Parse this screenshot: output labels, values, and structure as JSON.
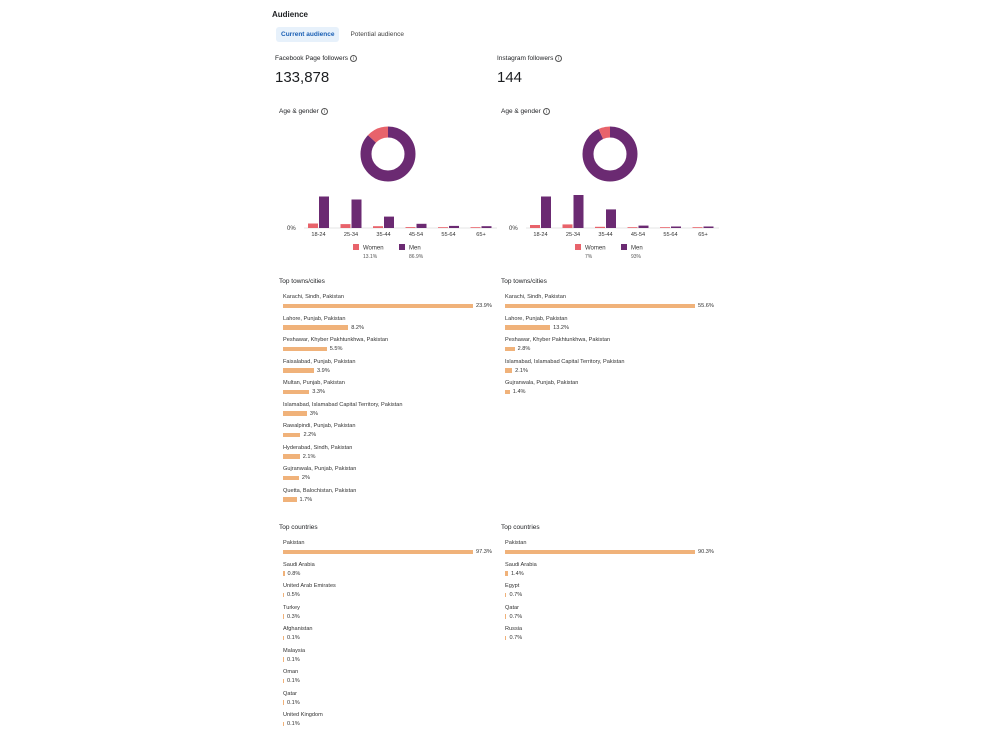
{
  "title": "Audience",
  "tabs": [
    {
      "label": "Current audience",
      "active": true
    },
    {
      "label": "Potential audience",
      "active": false
    }
  ],
  "panels": [
    {
      "metric_label": "Facebook Page followers",
      "metric_value": "133,878",
      "age_gender_label": "Age & gender",
      "chart_data": {
        "type": "bar",
        "categories": [
          "18-24",
          "25-34",
          "35-44",
          "45-54",
          "55-64",
          "65+"
        ],
        "series": [
          {
            "name": "Women",
            "values": [
              1.5,
              1.3,
              0.6,
              0.3,
              0.2,
              0.2
            ],
            "color": "#e8636b"
          },
          {
            "name": "Men",
            "values": [
              10.5,
              9.5,
              3.8,
              1.4,
              0.7,
              0.6
            ],
            "color": "#6b2a72"
          }
        ],
        "ylabel_zero": "0%",
        "ylim": [
          0,
          12
        ],
        "donut": {
          "women_pct": 13.1,
          "men_pct": 86.9
        },
        "legend": [
          {
            "name": "Women",
            "pct": "13.1%"
          },
          {
            "name": "Men",
            "pct": "86.9%"
          }
        ]
      },
      "cities_label": "Top towns/cities",
      "cities": [
        {
          "name": "Karachi, Sindh, Pakistan",
          "pct": 23.9,
          "label": "23.9%"
        },
        {
          "name": "Lahore, Punjab, Pakistan",
          "pct": 8.2,
          "label": "8.2%"
        },
        {
          "name": "Peshawar, Khyber Pakhtunkhwa, Pakistan",
          "pct": 5.5,
          "label": "5.5%"
        },
        {
          "name": "Faisalabad, Punjab, Pakistan",
          "pct": 3.9,
          "label": "3.9%"
        },
        {
          "name": "Multan, Punjab, Pakistan",
          "pct": 3.3,
          "label": "3.3%"
        },
        {
          "name": "Islamabad, Islamabad Capital Territory, Pakistan",
          "pct": 3.0,
          "label": "3%"
        },
        {
          "name": "Rawalpindi, Punjab, Pakistan",
          "pct": 2.2,
          "label": "2.2%"
        },
        {
          "name": "Hyderabad, Sindh, Pakistan",
          "pct": 2.1,
          "label": "2.1%"
        },
        {
          "name": "Gujranwala, Punjab, Pakistan",
          "pct": 2.0,
          "label": "2%"
        },
        {
          "name": "Quetta, Balochistan, Pakistan",
          "pct": 1.7,
          "label": "1.7%"
        }
      ],
      "countries_label": "Top countries",
      "countries": [
        {
          "name": "Pakistan",
          "pct": 97.3,
          "label": "97.3%"
        },
        {
          "name": "Saudi Arabia",
          "pct": 0.8,
          "label": "0.8%"
        },
        {
          "name": "United Arab Emirates",
          "pct": 0.5,
          "label": "0.5%"
        },
        {
          "name": "Turkey",
          "pct": 0.3,
          "label": "0.3%"
        },
        {
          "name": "Afghanistan",
          "pct": 0.1,
          "label": "0.1%"
        },
        {
          "name": "Malaysia",
          "pct": 0.1,
          "label": "0.1%"
        },
        {
          "name": "Oman",
          "pct": 0.1,
          "label": "0.1%"
        },
        {
          "name": "Qatar",
          "pct": 0.1,
          "label": "0.1%"
        },
        {
          "name": "United Kingdom",
          "pct": 0.1,
          "label": "0.1%"
        }
      ]
    },
    {
      "metric_label": "Instagram followers",
      "metric_value": "144",
      "age_gender_label": "Age & gender",
      "chart_data": {
        "type": "bar",
        "categories": [
          "18-24",
          "25-34",
          "35-44",
          "45-54",
          "55-64",
          "65+"
        ],
        "series": [
          {
            "name": "Women",
            "values": [
              1.0,
              1.2,
              0.4,
              0.2,
              0.1,
              0.1
            ],
            "color": "#e8636b"
          },
          {
            "name": "Men",
            "values": [
              10.5,
              11.0,
              6.2,
              0.8,
              0.5,
              0.5
            ],
            "color": "#6b2a72"
          }
        ],
        "ylabel_zero": "0%",
        "ylim": [
          0,
          12
        ],
        "donut": {
          "women_pct": 7,
          "men_pct": 93
        },
        "legend": [
          {
            "name": "Women",
            "pct": "7%"
          },
          {
            "name": "Men",
            "pct": "93%"
          }
        ]
      },
      "cities_label": "Top towns/cities",
      "cities": [
        {
          "name": "Karachi, Sindh, Pakistan",
          "pct": 55.6,
          "label": "55.6%"
        },
        {
          "name": "Lahore, Punjab, Pakistan",
          "pct": 13.2,
          "label": "13.2%"
        },
        {
          "name": "Peshawar, Khyber Pakhtunkhwa, Pakistan",
          "pct": 2.8,
          "label": "2.8%"
        },
        {
          "name": "Islamabad, Islamabad Capital Territory, Pakistan",
          "pct": 2.1,
          "label": "2.1%"
        },
        {
          "name": "Gujranwala, Punjab, Pakistan",
          "pct": 1.4,
          "label": "1.4%"
        }
      ],
      "countries_label": "Top countries",
      "countries": [
        {
          "name": "Pakistan",
          "pct": 90.3,
          "label": "90.3%"
        },
        {
          "name": "Saudi Arabia",
          "pct": 1.4,
          "label": "1.4%"
        },
        {
          "name": "Egypt",
          "pct": 0.7,
          "label": "0.7%"
        },
        {
          "name": "Qatar",
          "pct": 0.7,
          "label": "0.7%"
        },
        {
          "name": "Russia",
          "pct": 0.7,
          "label": "0.7%"
        }
      ]
    }
  ],
  "colors": {
    "women": "#e8636b",
    "men": "#6b2a72",
    "bar": "#f0b27a",
    "tab_active_bg": "#e7f1fb",
    "tab_active_text": "#1a5fb4"
  },
  "icons": {
    "info": "info-icon"
  }
}
